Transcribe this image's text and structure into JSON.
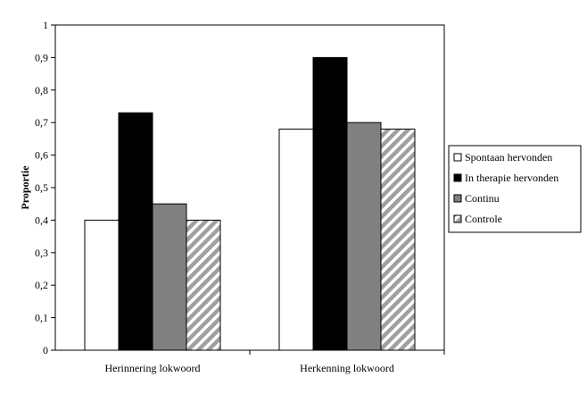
{
  "chart_data": {
    "type": "bar",
    "title": "",
    "xlabel": "",
    "ylabel": "Proportie",
    "ylim": [
      0,
      1
    ],
    "yticks": [
      "0",
      "0,1",
      "0,2",
      "0,3",
      "0,4",
      "0,5",
      "0,6",
      "0,7",
      "0,8",
      "0,9",
      "1"
    ],
    "ytick_values": [
      0,
      0.1,
      0.2,
      0.3,
      0.4,
      0.5,
      0.6,
      0.7,
      0.8,
      0.9,
      1
    ],
    "categories": [
      "Herinnering lokwoord",
      "Herkenning lokwoord"
    ],
    "series": [
      {
        "name": "Spontaan hervonden",
        "values": [
          0.4,
          0.68
        ],
        "color": "#ffffff",
        "pattern": "none"
      },
      {
        "name": "In therapie hervonden",
        "values": [
          0.73,
          0.9
        ],
        "color": "#000000",
        "pattern": "none"
      },
      {
        "name": "Continu",
        "values": [
          0.45,
          0.7
        ],
        "color": "#808080",
        "pattern": "none"
      },
      {
        "name": "Controle",
        "values": [
          0.4,
          0.68
        ],
        "color": "#a0a0a0",
        "pattern": "diagonal-stripes"
      }
    ],
    "grid": false,
    "legend_position": "right"
  }
}
